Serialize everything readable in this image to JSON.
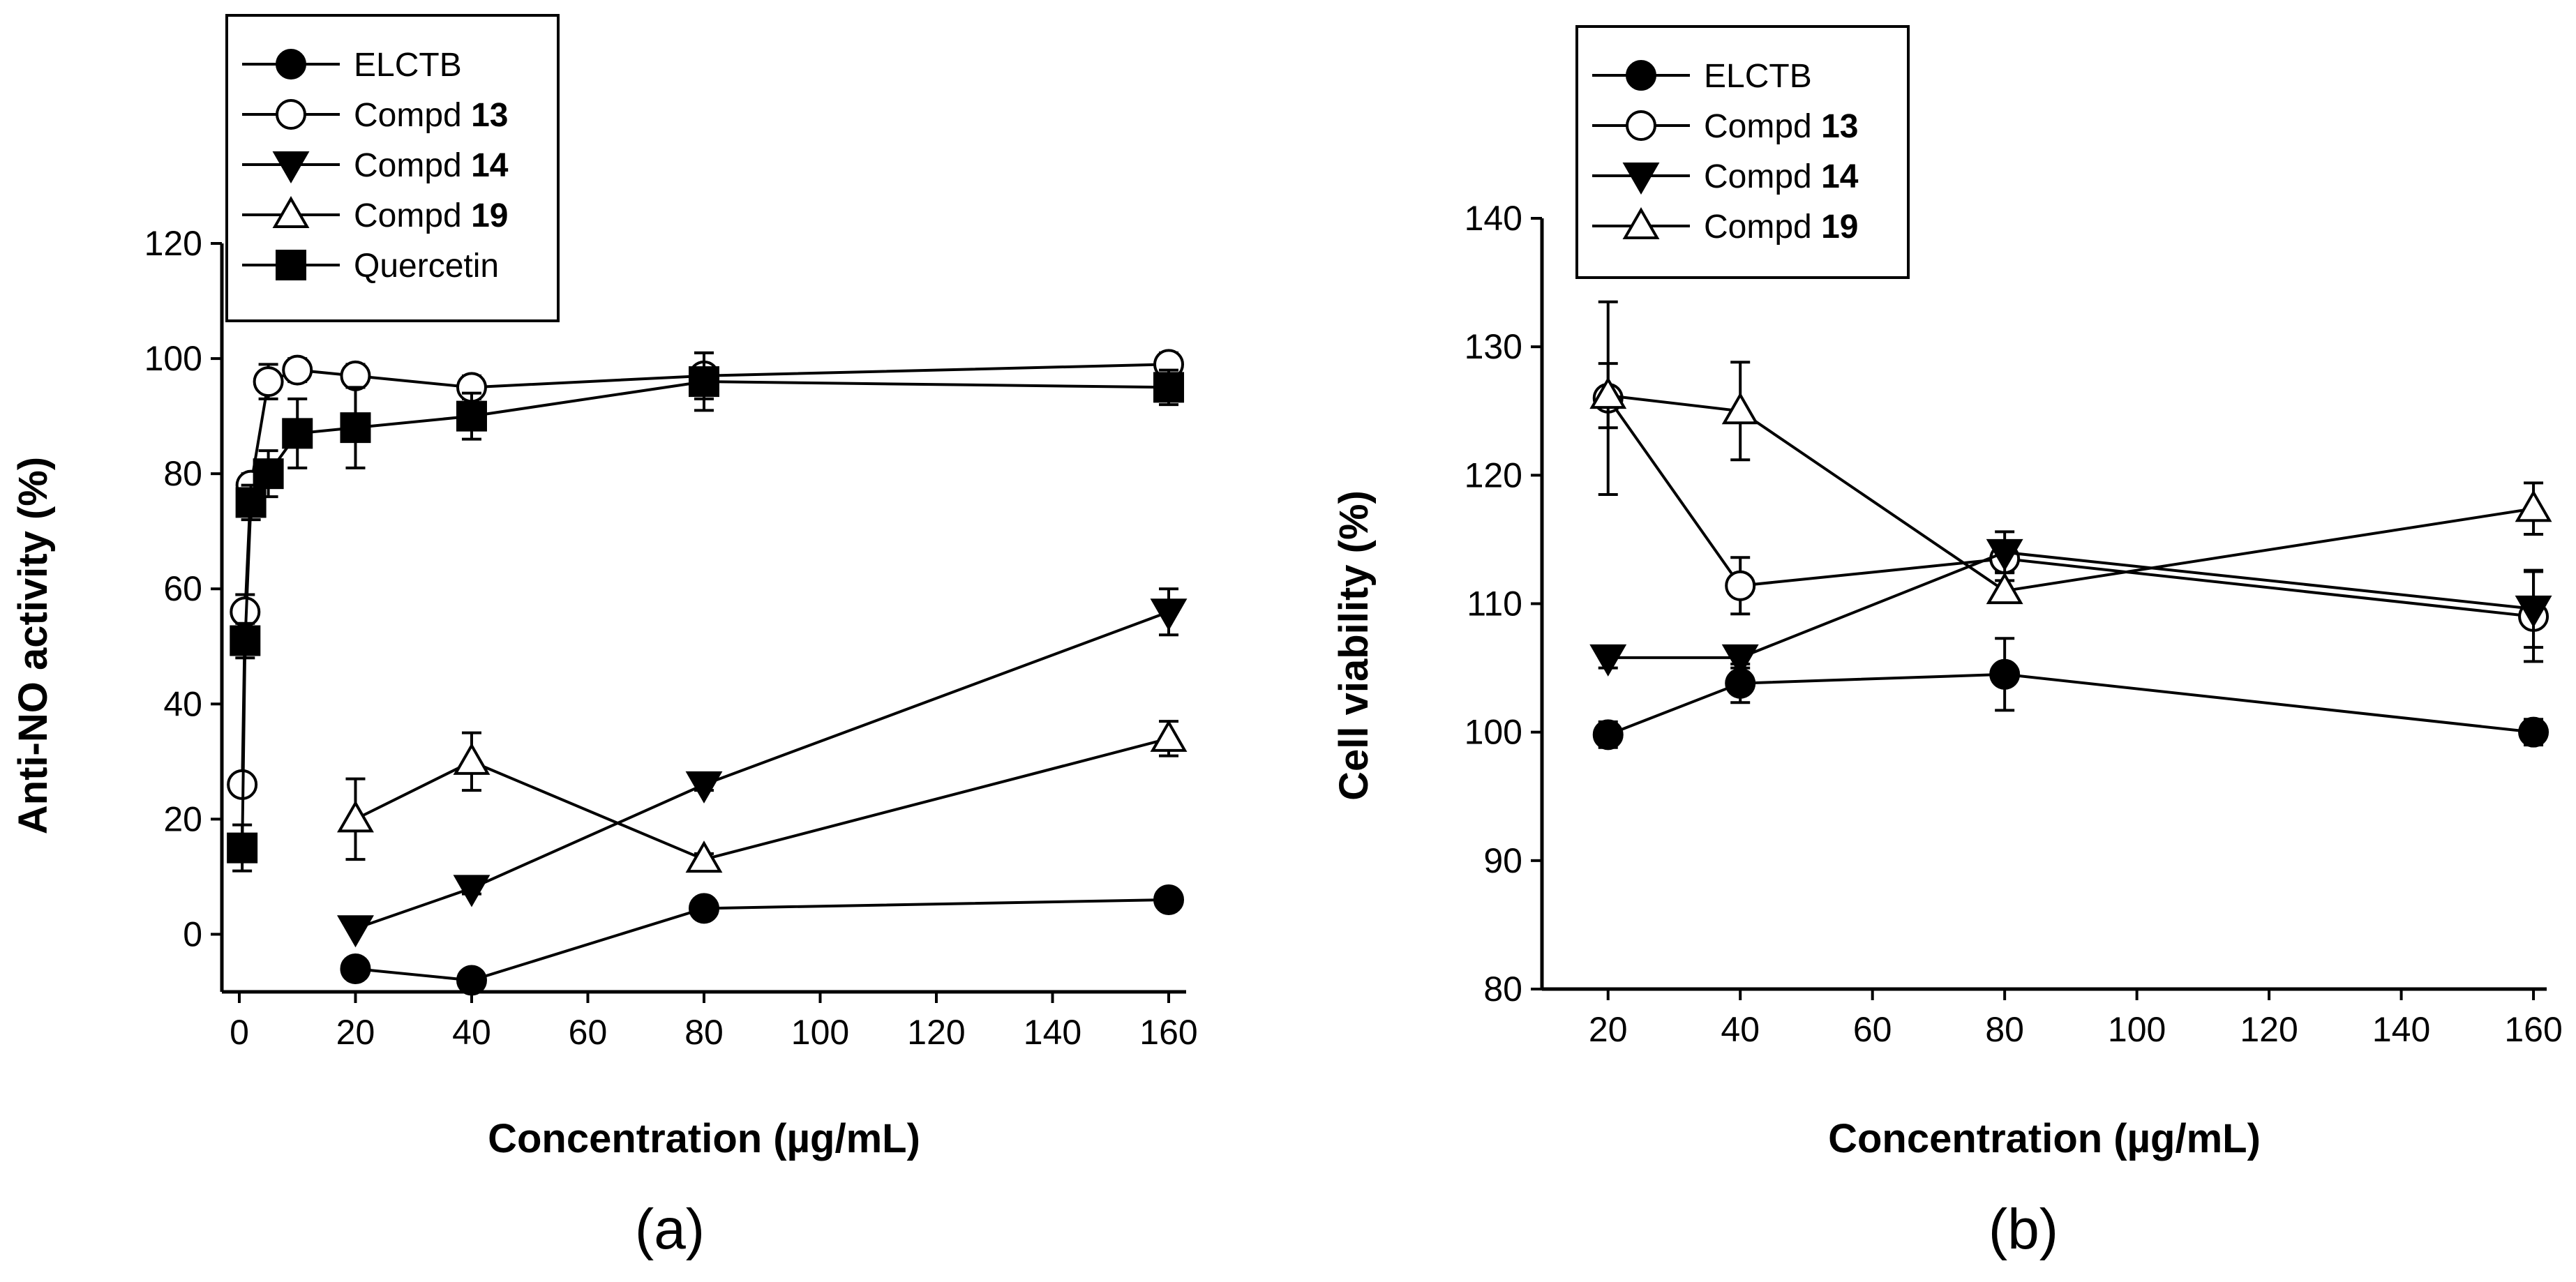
{
  "chart_data": [
    {
      "type": "scatter",
      "panel": "a",
      "xlabel": "Concentration (µg/mL)",
      "ylabel": "Anti-NO activity (%)",
      "xlim": [
        -3,
        163
      ],
      "ylim": [
        -10,
        120
      ],
      "xticks": [
        0,
        20,
        40,
        60,
        80,
        100,
        120,
        140,
        160
      ],
      "yticks": [
        0,
        20,
        40,
        60,
        80,
        100,
        120
      ],
      "legend_position": "top-left",
      "series": [
        {
          "name": "ELCTB",
          "marker": "circle-filled",
          "x": [
            20,
            40,
            80,
            160
          ],
          "y": [
            -6,
            -8,
            4.5,
            6
          ],
          "err": [
            0,
            0,
            0,
            0
          ]
        },
        {
          "name": "Compd 13",
          "name_plain": "Compd ",
          "name_bold": "13",
          "marker": "circle-open",
          "x": [
            0.5,
            1,
            2,
            5,
            10,
            20,
            40,
            80,
            160
          ],
          "y": [
            26,
            56,
            78,
            96,
            98,
            97,
            95,
            97,
            99
          ],
          "err": [
            0,
            3,
            2,
            3,
            2,
            2,
            2,
            4,
            2
          ]
        },
        {
          "name": "Compd 14",
          "name_plain": "Compd ",
          "name_bold": "14",
          "marker": "triangle-down-filled",
          "x": [
            20,
            40,
            80,
            160
          ],
          "y": [
            1,
            8,
            26,
            56
          ],
          "err": [
            0,
            1,
            1,
            4
          ]
        },
        {
          "name": "Compd 19",
          "name_plain": "Compd ",
          "name_bold": "19",
          "marker": "triangle-up-open",
          "x": [
            20,
            40,
            80,
            160
          ],
          "y": [
            20,
            30,
            13,
            34
          ],
          "err": [
            7,
            5,
            1,
            3
          ]
        },
        {
          "name": "Quercetin",
          "marker": "square-filled",
          "x": [
            0.5,
            1,
            2,
            5,
            10,
            20,
            40,
            80,
            160
          ],
          "y": [
            15,
            51,
            75,
            80,
            87,
            88,
            90,
            96,
            95
          ],
          "err": [
            4,
            3,
            3,
            4,
            6,
            7,
            4,
            5,
            3
          ]
        }
      ]
    },
    {
      "type": "scatter",
      "panel": "b",
      "xlabel": "Concentration (µg/mL)",
      "ylabel": "Cell viability (%)",
      "xlim": [
        10,
        162
      ],
      "ylim": [
        80,
        140
      ],
      "xticks": [
        20,
        40,
        60,
        80,
        100,
        120,
        140,
        160
      ],
      "yticks": [
        80,
        90,
        100,
        110,
        120,
        130,
        140
      ],
      "legend_position": "top-left",
      "series": [
        {
          "name": "ELCTB",
          "marker": "circle-filled",
          "x": [
            20,
            40,
            80,
            160
          ],
          "y": [
            99.8,
            103.8,
            104.5,
            100
          ],
          "err": [
            1,
            1.5,
            2.8,
            1
          ]
        },
        {
          "name": "Compd 13",
          "name_plain": "Compd ",
          "name_bold": "13",
          "marker": "circle-open",
          "x": [
            20,
            40,
            80,
            160
          ],
          "y": [
            126,
            111.4,
            113.5,
            109
          ],
          "err": [
            7.5,
            2.2,
            1,
            3.5
          ]
        },
        {
          "name": "Compd 14",
          "name_plain": "Compd ",
          "name_bold": "14",
          "marker": "triangle-down-filled",
          "x": [
            20,
            40,
            80,
            160
          ],
          "y": [
            105.8,
            105.8,
            114,
            109.6
          ],
          "err": [
            0.8,
            0.8,
            1.6,
            3
          ]
        },
        {
          "name": "Compd 19",
          "name_plain": "Compd ",
          "name_bold": "19",
          "marker": "triangle-up-open",
          "x": [
            20,
            40,
            80,
            160
          ],
          "y": [
            126.2,
            125,
            111,
            117.4
          ],
          "err": [
            2.5,
            3.8,
            0.8,
            2
          ]
        }
      ]
    }
  ],
  "panel_labels": [
    "(a)",
    "(b)"
  ]
}
